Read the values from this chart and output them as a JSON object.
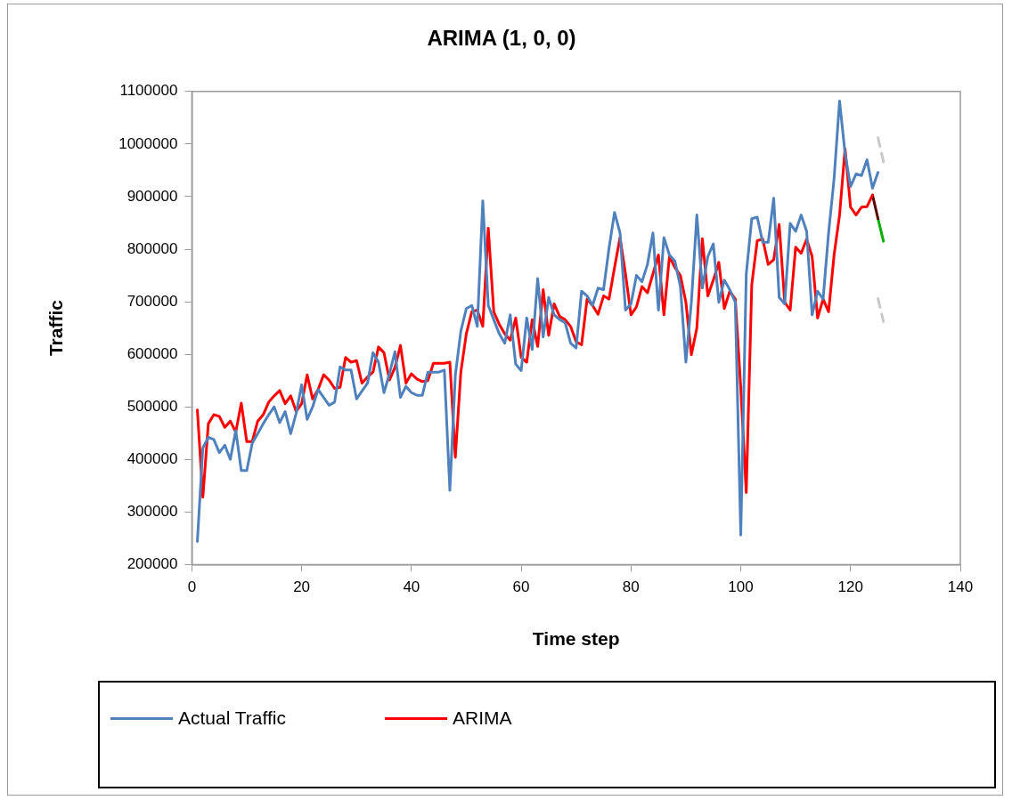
{
  "chart_data": {
    "type": "line",
    "title": "ARIMA (1, 0, 0)",
    "xlabel": "Time step",
    "ylabel": "Traffic",
    "x": [
      1,
      2,
      3,
      4,
      5,
      6,
      7,
      8,
      9,
      10,
      11,
      12,
      13,
      14,
      15,
      16,
      17,
      18,
      19,
      20,
      21,
      22,
      23,
      24,
      25,
      26,
      27,
      28,
      29,
      30,
      31,
      32,
      33,
      34,
      35,
      36,
      37,
      38,
      39,
      40,
      41,
      42,
      43,
      44,
      45,
      46,
      47,
      48,
      49,
      50,
      51,
      52,
      53,
      54,
      55,
      56,
      57,
      58,
      59,
      60,
      61,
      62,
      63,
      64,
      65,
      66,
      67,
      68,
      69,
      70,
      71,
      72,
      73,
      74,
      75,
      76,
      77,
      78,
      79,
      80,
      81,
      82,
      83,
      84,
      85,
      86,
      87,
      88,
      89,
      90,
      91,
      92,
      93,
      94,
      95,
      96,
      97,
      98,
      99,
      100,
      101,
      102,
      103,
      104,
      105,
      106,
      107,
      108,
      109,
      110,
      111,
      112,
      113,
      114,
      115,
      116,
      117,
      118,
      119,
      120,
      121,
      122,
      123,
      124,
      125
    ],
    "series": [
      {
        "name": "Actual Traffic",
        "color": "#4f81bd",
        "values": [
          244000,
          422000,
          442000,
          438000,
          413000,
          427000,
          400000,
          455000,
          379000,
          379000,
          431000,
          449000,
          468000,
          485000,
          500000,
          470000,
          491000,
          449000,
          488000,
          542000,
          476000,
          500000,
          533000,
          518000,
          503000,
          509000,
          576000,
          570000,
          570000,
          515000,
          530000,
          545000,
          603000,
          585000,
          527000,
          563000,
          605000,
          518000,
          539000,
          527000,
          522000,
          522000,
          566000,
          566000,
          566000,
          570000,
          341000,
          560000,
          644000,
          687000,
          693000,
          653000,
          892000,
          693000,
          666000,
          639000,
          621000,
          675000,
          581000,
          569000,
          669000,
          609000,
          744000,
          633000,
          708000,
          675000,
          666000,
          660000,
          621000,
          612000,
          720000,
          711000,
          693000,
          726000,
          723000,
          802000,
          870000,
          831000,
          684000,
          696000,
          750000,
          738000,
          771000,
          831000,
          684000,
          822000,
          789000,
          777000,
          729000,
          585000,
          699000,
          865000,
          726000,
          786000,
          810000,
          699000,
          741000,
          723000,
          699000,
          256000,
          753000,
          858000,
          861000,
          813000,
          813000,
          897000,
          708000,
          696000,
          849000,
          834000,
          865000,
          834000,
          675000,
          720000,
          705000,
          831000,
          934000,
          1082000,
          982000,
          919000,
          943000,
          940000,
          970000,
          916000,
          946000
        ]
      },
      {
        "name": "ARIMA",
        "color": "#ff0000",
        "values": [
          494000,
          328000,
          468000,
          485000,
          482000,
          461000,
          473000,
          452000,
          507000,
          434000,
          434000,
          473000,
          485000,
          509000,
          521000,
          531000,
          506000,
          521000,
          491000,
          506000,
          561000,
          515000,
          533000,
          561000,
          551000,
          535000,
          537000,
          594000,
          585000,
          588000,
          545000,
          557000,
          566000,
          614000,
          603000,
          551000,
          575000,
          617000,
          545000,
          563000,
          553000,
          548000,
          550000,
          583000,
          583000,
          583000,
          585000,
          404000,
          566000,
          639000,
          681000,
          684000,
          653000,
          840000,
          681000,
          657000,
          639000,
          627000,
          669000,
          594000,
          585000,
          666000,
          615000,
          723000,
          636000,
          696000,
          672000,
          666000,
          653000,
          624000,
          618000,
          705000,
          693000,
          676000,
          711000,
          705000,
          765000,
          822000,
          753000,
          675000,
          690000,
          729000,
          717000,
          753000,
          789000,
          675000,
          786000,
          765000,
          750000,
          699000,
          599000,
          650000,
          820000,
          711000,
          741000,
          775000,
          687000,
          720000,
          705000,
          536000,
          337000,
          732000,
          816000,
          819000,
          771000,
          780000,
          847000,
          699000,
          684000,
          804000,
          792000,
          819000,
          786000,
          669000,
          705000,
          681000,
          789000,
          865000,
          991000,
          880000,
          865000,
          880000,
          881000,
          903000,
          null
        ]
      },
      {
        "color": "#5a0000",
        "x": [
          124,
          125
        ],
        "values": [
          903000,
          858000
        ]
      },
      {
        "color": "#00b000",
        "x": [
          125,
          126
        ],
        "values": [
          858000,
          815000
        ]
      },
      {
        "color": "#c8c8c8",
        "x": [
          125,
          126
        ],
        "values": [
          1012000,
          966000
        ],
        "line_style": "dashed"
      },
      {
        "color": "#c8c8c8",
        "x": [
          125,
          126
        ],
        "values": [
          706000,
          662000
        ],
        "line_style": "dashed"
      }
    ],
    "xlim": [
      0,
      140
    ],
    "xticks": [
      0,
      20,
      40,
      60,
      80,
      100,
      120,
      140
    ],
    "ylim": [
      200000,
      1100000
    ],
    "yticks": [
      200000,
      300000,
      400000,
      500000,
      600000,
      700000,
      800000,
      900000,
      1000000,
      1100000
    ],
    "grid": false,
    "legend": "bottom",
    "marker": "none",
    "line_style": "solid"
  }
}
